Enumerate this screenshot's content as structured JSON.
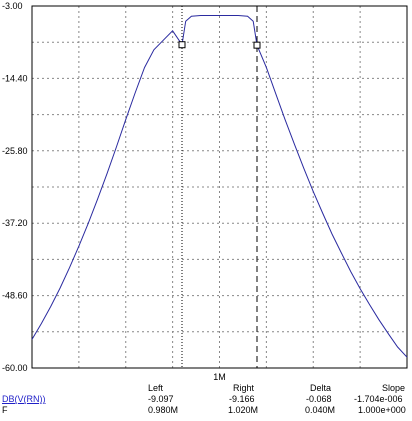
{
  "chart_data": {
    "type": "line",
    "title": "",
    "xlabel": "",
    "ylabel": "",
    "x_tick_labels": [
      "1M"
    ],
    "y_tick_labels": [
      "-3.00",
      "-14.40",
      "-25.80",
      "-37.20",
      "-48.60",
      "-60.00"
    ],
    "ylim": [
      -60.0,
      -3.0
    ],
    "xlim": [
      0.9,
      1.1
    ],
    "x_unit": "Hz",
    "grid": true,
    "series": [
      {
        "color": "#2b2ba0",
        "points": [
          [
            0.9,
            -55.5
          ],
          [
            0.905,
            -53.0
          ],
          [
            0.91,
            -50.3
          ],
          [
            0.915,
            -47.4
          ],
          [
            0.92,
            -44.2
          ],
          [
            0.925,
            -40.8
          ],
          [
            0.93,
            -37.2
          ],
          [
            0.935,
            -33.4
          ],
          [
            0.94,
            -29.4
          ],
          [
            0.945,
            -25.2
          ],
          [
            0.95,
            -20.9
          ],
          [
            0.955,
            -16.7
          ],
          [
            0.96,
            -12.7
          ],
          [
            0.965,
            -9.9
          ],
          [
            0.97,
            -8.4
          ],
          [
            0.975,
            -6.9
          ],
          [
            0.98,
            -9.097
          ],
          [
            0.982,
            -5.4
          ],
          [
            0.985,
            -4.6
          ],
          [
            0.99,
            -4.5
          ],
          [
            1.01,
            -4.5
          ],
          [
            1.015,
            -4.6
          ],
          [
            1.018,
            -5.4
          ],
          [
            1.02,
            -9.166
          ],
          [
            1.025,
            -12.7
          ],
          [
            1.03,
            -16.8
          ],
          [
            1.035,
            -20.9
          ],
          [
            1.04,
            -24.8
          ],
          [
            1.045,
            -28.6
          ],
          [
            1.05,
            -32.2
          ],
          [
            1.055,
            -35.6
          ],
          [
            1.06,
            -38.9
          ],
          [
            1.065,
            -41.9
          ],
          [
            1.07,
            -44.8
          ],
          [
            1.075,
            -47.5
          ],
          [
            1.08,
            -50.0
          ],
          [
            1.085,
            -52.4
          ],
          [
            1.09,
            -54.6
          ],
          [
            1.095,
            -56.7
          ],
          [
            1.1,
            -58.3
          ]
        ]
      }
    ],
    "cursors": [
      {
        "name": "Left",
        "x": 0.98,
        "y": -9.097,
        "style": "dotted"
      },
      {
        "name": "Right",
        "x": 1.02,
        "y": -9.166,
        "style": "dashed"
      }
    ]
  },
  "readout": {
    "headers": {
      "left": "Left",
      "right": "Right",
      "delta": "Delta",
      "slope": "Slope"
    },
    "rows": [
      {
        "label": "DB(V(RN))",
        "left": "-9.097",
        "right": "-9.166",
        "delta": "-0.068",
        "slope": "-1.704e-006"
      },
      {
        "label": "F",
        "left": "0.980M",
        "right": "1.020M",
        "delta": "0.040M",
        "slope": "1.000e+000"
      }
    ]
  },
  "colors": {
    "trace": "#2b2ba0",
    "grid": "#888888",
    "axis": "#000000",
    "label_link": "#1f1fc8"
  }
}
